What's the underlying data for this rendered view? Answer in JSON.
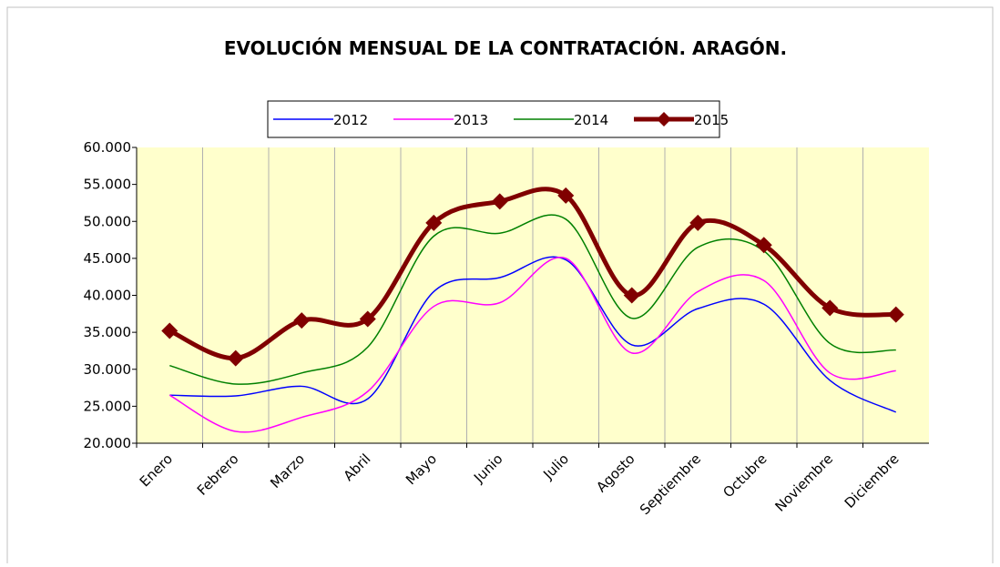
{
  "chart_data": {
    "type": "line",
    "title": "EVOLUCIÓN MENSUAL DE LA CONTRATACIÓN. ARAGÓN.",
    "categories": [
      "Enero",
      "Febrero",
      "Marzo",
      "Abril",
      "Mayo",
      "Junio",
      "Julio",
      "Agosto",
      "Septiembre",
      "Octubre",
      "Noviembre",
      "Diciembre"
    ],
    "series": [
      {
        "name": "2012",
        "color": "#0000ff",
        "values": [
          26500,
          26400,
          27700,
          26000,
          40500,
          42400,
          44800,
          33300,
          38200,
          38800,
          28500,
          24200
        ]
      },
      {
        "name": "2013",
        "color": "#ff00ff",
        "values": [
          26500,
          21600,
          23500,
          27000,
          38500,
          39000,
          45000,
          32200,
          40500,
          42000,
          29500,
          29800
        ]
      },
      {
        "name": "2014",
        "color": "#008000",
        "values": [
          30500,
          28000,
          29500,
          33000,
          48000,
          48400,
          50300,
          36900,
          46500,
          46000,
          33500,
          32600
        ]
      },
      {
        "name": "2015",
        "color": "#800000",
        "values": [
          35200,
          31500,
          36600,
          36800,
          49800,
          52700,
          53500,
          40000,
          49800,
          46800,
          38300,
          37400
        ]
      }
    ],
    "ylim": [
      20000,
      60000
    ],
    "yticks": [
      {
        "value": 20000,
        "label": "20.000"
      },
      {
        "value": 25000,
        "label": "25.000"
      },
      {
        "value": 30000,
        "label": "30.000"
      },
      {
        "value": 35000,
        "label": "35.000"
      },
      {
        "value": 40000,
        "label": "40.000"
      },
      {
        "value": 45000,
        "label": "45.000"
      },
      {
        "value": 50000,
        "label": "50.000"
      },
      {
        "value": 55000,
        "label": "55.000"
      },
      {
        "value": 60000,
        "label": "60.000"
      }
    ],
    "legend": "top",
    "plot_background": "#ffffcc"
  }
}
